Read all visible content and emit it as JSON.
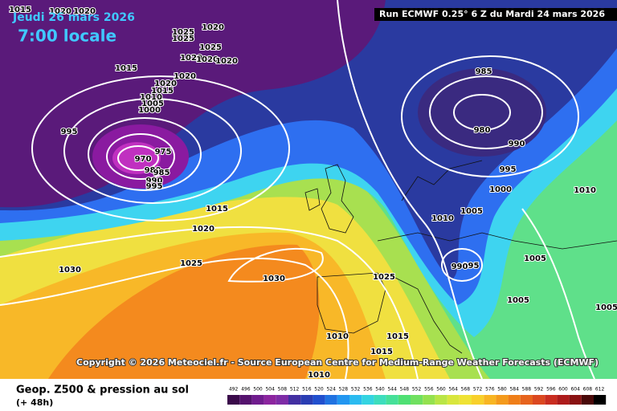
{
  "header": {
    "date": "Jeudi 26 mars 2026",
    "time": "7:00 locale",
    "run": "Run ECMWF 0.25° 6 Z du Mardi 24 mars 2026"
  },
  "copyright": "Copyright © 2026 Meteociel.fr - Source European Centre for Medium-Range Weather Forecasts (ECMWF)",
  "footer": {
    "title": "Geop. Z500 & pression au sol",
    "lead": "(+ 48h)"
  },
  "legend": {
    "values": [
      492,
      496,
      500,
      504,
      508,
      512,
      516,
      520,
      524,
      528,
      532,
      536,
      540,
      544,
      548,
      552,
      556,
      560,
      564,
      568,
      572,
      576,
      580,
      584,
      588,
      592,
      596,
      600,
      604,
      608,
      612
    ]
  },
  "isobar_labels": [
    1015,
    1020,
    1020,
    1025,
    1025,
    1020,
    1020,
    1025,
    1020,
    1020,
    1015,
    1020,
    1020,
    1015,
    1010,
    1005,
    1000,
    995,
    970,
    975,
    980,
    985,
    990,
    995,
    1015,
    1020,
    1025,
    1030,
    1030,
    985,
    980,
    990,
    995,
    1000,
    1010,
    1005,
    1010,
    995,
    990,
    1005,
    1025,
    1005,
    1005,
    1010,
    1015,
    1015,
    1010
  ]
}
